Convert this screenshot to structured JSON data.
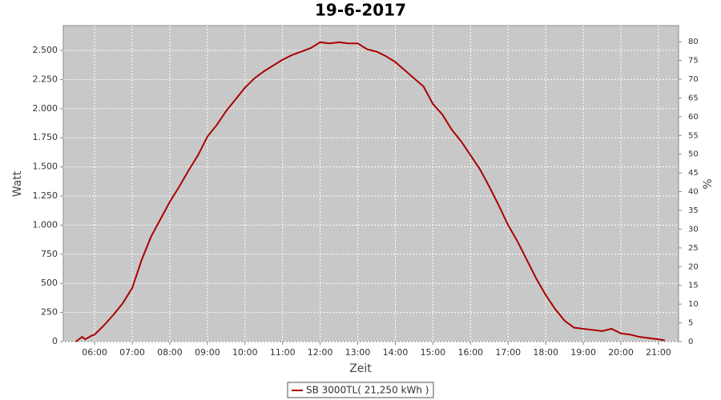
{
  "chart_data": {
    "type": "line",
    "title": "19-6-2017",
    "x_label": "Zeit",
    "y_label": "Watt",
    "y2_label": "%",
    "x": [
      330,
      340,
      345,
      355,
      360,
      375,
      390,
      405,
      420,
      435,
      450,
      465,
      480,
      495,
      510,
      525,
      540,
      555,
      570,
      585,
      600,
      615,
      630,
      645,
      660,
      675,
      690,
      705,
      720,
      735,
      750,
      765,
      780,
      795,
      810,
      825,
      840,
      855,
      870,
      885,
      900,
      915,
      930,
      945,
      960,
      975,
      990,
      1005,
      1020,
      1035,
      1050,
      1065,
      1080,
      1095,
      1110,
      1125,
      1140,
      1155,
      1170,
      1185,
      1200,
      1215,
      1230,
      1245,
      1260,
      1270
    ],
    "series": [
      {
        "name": "SB 3000TL( 21,250 kWh )",
        "color": "#aa0000",
        "values": [
          0,
          40,
          20,
          50,
          60,
          140,
          230,
          330,
          460,
          700,
          900,
          1050,
          1200,
          1330,
          1470,
          1600,
          1760,
          1860,
          1980,
          2080,
          2180,
          2260,
          2320,
          2370,
          2420,
          2460,
          2490,
          2520,
          2570,
          2560,
          2570,
          2560,
          2560,
          2510,
          2490,
          2450,
          2400,
          2330,
          2260,
          2190,
          2040,
          1950,
          1820,
          1720,
          1600,
          1480,
          1330,
          1170,
          1000,
          860,
          700,
          540,
          400,
          280,
          180,
          120,
          110,
          100,
          90,
          110,
          70,
          60,
          40,
          30,
          20,
          10
        ]
      }
    ],
    "xlim": [
      310,
      1292
    ],
    "xticks": [
      {
        "value": 360,
        "label": "06:00"
      },
      {
        "value": 420,
        "label": "07:00"
      },
      {
        "value": 480,
        "label": "08:00"
      },
      {
        "value": 540,
        "label": "09:00"
      },
      {
        "value": 600,
        "label": "10:00"
      },
      {
        "value": 660,
        "label": "11:00"
      },
      {
        "value": 720,
        "label": "12:00"
      },
      {
        "value": 780,
        "label": "13:00"
      },
      {
        "value": 840,
        "label": "14:00"
      },
      {
        "value": 900,
        "label": "15:00"
      },
      {
        "value": 960,
        "label": "16:00"
      },
      {
        "value": 1020,
        "label": "17:00"
      },
      {
        "value": 1080,
        "label": "18:00"
      },
      {
        "value": 1140,
        "label": "19:00"
      },
      {
        "value": 1200,
        "label": "20:00"
      },
      {
        "value": 1260,
        "label": "21:00"
      }
    ],
    "ylim": [
      0,
      2713
    ],
    "yticks": [
      0,
      250,
      500,
      750,
      {
        "value": 1000,
        "label": "1.000"
      },
      {
        "value": 1250,
        "label": "1.250"
      },
      {
        "value": 1500,
        "label": "1.500"
      },
      {
        "value": 1750,
        "label": "1.750"
      },
      {
        "value": 2000,
        "label": "2.000"
      },
      {
        "value": 2250,
        "label": "2.250"
      },
      {
        "value": 2500,
        "label": "2.500"
      }
    ],
    "y2lim": [
      0,
      84.3
    ],
    "y2ticks": [
      0,
      5,
      10,
      15,
      20,
      25,
      30,
      35,
      40,
      45,
      50,
      55,
      60,
      65,
      70,
      75,
      80
    ],
    "grid": true,
    "legend": "bottom"
  }
}
